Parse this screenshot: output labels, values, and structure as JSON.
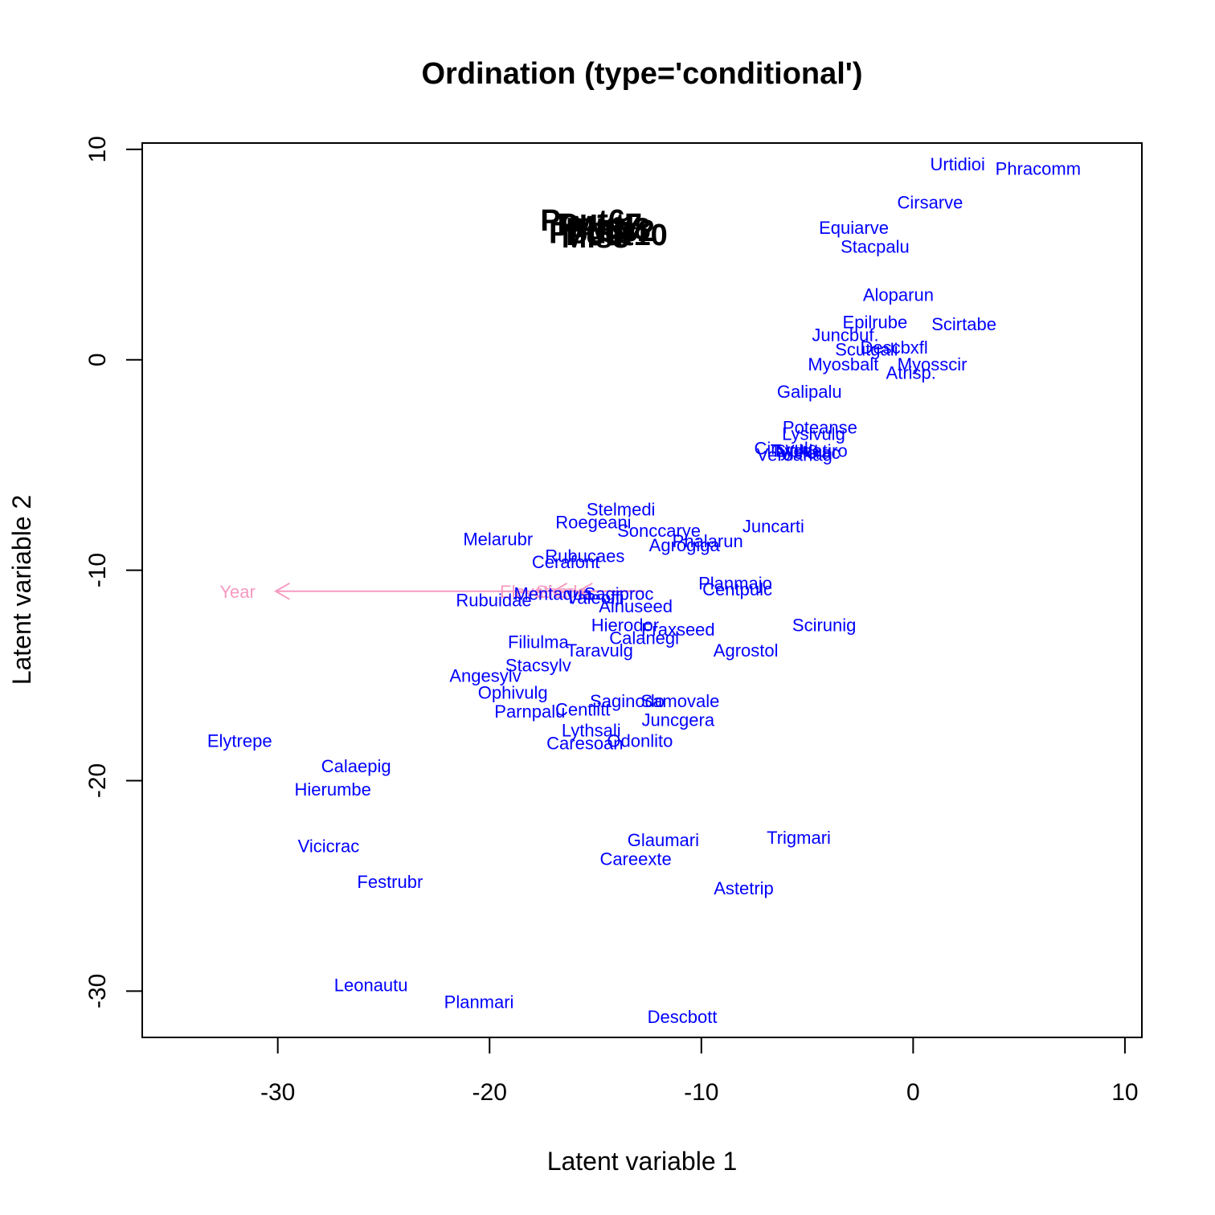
{
  "chart_data": {
    "type": "scatter",
    "title": "Ordination (type='conditional')",
    "xlabel": "Latent variable 1",
    "ylabel": "Latent variable 2",
    "xlim": [
      -36.4,
      10.8
    ],
    "ylim": [
      -32.2,
      10.3
    ],
    "xticks": [
      -30,
      -20,
      -10,
      0,
      10
    ],
    "yticks": [
      10,
      0,
      -10,
      -20,
      -30
    ],
    "colors": {
      "species": "#0000ff",
      "sites": "#000000",
      "env": "#f59ac0"
    },
    "sites": {
      "labels": [
        "Pout6",
        "Pout7",
        "Pout8",
        "Pout9",
        "Pout10",
        "Mis1",
        "Mis2",
        "Mis3"
      ],
      "x": [
        -15.6,
        -14.8,
        -14.4,
        -15.2,
        -14.0,
        -14.6,
        -13.8,
        -15.0
      ],
      "y": [
        6.6,
        6.4,
        6.2,
        6.0,
        5.9,
        6.3,
        6.1,
        5.8
      ]
    },
    "species": [
      {
        "label": "Urtidioi",
        "x": 2.1,
        "y": 9.3
      },
      {
        "label": "Phracomm",
        "x": 5.9,
        "y": 9.1
      },
      {
        "label": "Cirsarve",
        "x": 0.8,
        "y": 7.5
      },
      {
        "label": "Equiarve",
        "x": -2.8,
        "y": 6.3
      },
      {
        "label": "Stacpalu",
        "x": -1.8,
        "y": 5.4
      },
      {
        "label": "Aloparun",
        "x": -0.7,
        "y": 3.1
      },
      {
        "label": "Epilrube",
        "x": -1.8,
        "y": 1.8
      },
      {
        "label": "Scirtabe",
        "x": 2.4,
        "y": 1.7
      },
      {
        "label": "Juncbuf.",
        "x": -3.2,
        "y": 1.2
      },
      {
        "label": "Descbxfl",
        "x": -0.9,
        "y": 0.6
      },
      {
        "label": "Scutgali",
        "x": -2.2,
        "y": 0.5
      },
      {
        "label": "Myosbalt",
        "x": -3.3,
        "y": -0.2
      },
      {
        "label": "Myosscir",
        "x": 0.9,
        "y": -0.2
      },
      {
        "label": "Atrisp.",
        "x": -0.1,
        "y": -0.6
      },
      {
        "label": "Galipalu",
        "x": -4.9,
        "y": -1.5
      },
      {
        "label": "Poteanse",
        "x": -4.4,
        "y": -3.2
      },
      {
        "label": "Lysivulg",
        "x": -4.7,
        "y": -3.5
      },
      {
        "label": "Cirsvulg",
        "x": -6.0,
        "y": -4.2
      },
      {
        "label": "Lycoeuro",
        "x": -4.8,
        "y": -4.3
      },
      {
        "label": "Vicicrac",
        "x": -4.9,
        "y": -4.4
      },
      {
        "label": "Typhlati",
        "x": -5.3,
        "y": -4.3
      },
      {
        "label": "Veroanag",
        "x": -5.6,
        "y": -4.5
      },
      {
        "label": "Stelmedi",
        "x": -13.8,
        "y": -7.1
      },
      {
        "label": "Roegeani",
        "x": -15.1,
        "y": -7.7
      },
      {
        "label": "Sonccarye",
        "x": -12.0,
        "y": -8.1
      },
      {
        "label": "Juncarti",
        "x": -6.6,
        "y": -7.9
      },
      {
        "label": "Melarubr",
        "x": -19.6,
        "y": -8.5
      },
      {
        "label": "Phalarun",
        "x": -9.7,
        "y": -8.6
      },
      {
        "label": "Agrogiga",
        "x": -10.8,
        "y": -8.8
      },
      {
        "label": "Rubucaes",
        "x": -15.5,
        "y": -9.3
      },
      {
        "label": "Cerafont",
        "x": -16.4,
        "y": -9.6
      },
      {
        "label": "Planmajo",
        "x": -8.4,
        "y": -10.6
      },
      {
        "label": "Centpulc",
        "x": -8.3,
        "y": -10.9
      },
      {
        "label": "Rubuidae",
        "x": -19.8,
        "y": -11.4
      },
      {
        "label": "Mentaqua",
        "x": -17.0,
        "y": -11.1
      },
      {
        "label": "Valeoffi",
        "x": -15.0,
        "y": -11.3
      },
      {
        "label": "Sagiproc",
        "x": -13.9,
        "y": -11.1
      },
      {
        "label": "Alnuseed",
        "x": -13.1,
        "y": -11.7
      },
      {
        "label": "Hierodor",
        "x": -13.6,
        "y": -12.6
      },
      {
        "label": "Fraxseed",
        "x": -11.1,
        "y": -12.8
      },
      {
        "label": "Scirunig",
        "x": -4.2,
        "y": -12.6
      },
      {
        "label": "Calanegl",
        "x": -12.7,
        "y": -13.2
      },
      {
        "label": "Filiulma",
        "x": -17.7,
        "y": -13.4
      },
      {
        "label": "Taravulg",
        "x": -14.8,
        "y": -13.8
      },
      {
        "label": "Agrostol",
        "x": -7.9,
        "y": -13.8
      },
      {
        "label": "Stacsylv",
        "x": -17.7,
        "y": -14.5
      },
      {
        "label": "Angesylv",
        "x": -20.2,
        "y": -15.0
      },
      {
        "label": "Ophivulg",
        "x": -18.9,
        "y": -15.8
      },
      {
        "label": "Saginodo",
        "x": -13.5,
        "y": -16.2
      },
      {
        "label": "Samovale",
        "x": -11.0,
        "y": -16.2
      },
      {
        "label": "Centlitt",
        "x": -15.6,
        "y": -16.6
      },
      {
        "label": "Parnpalu",
        "x": -18.1,
        "y": -16.7
      },
      {
        "label": "Juncgera",
        "x": -11.1,
        "y": -17.1
      },
      {
        "label": "Lythsali",
        "x": -15.2,
        "y": -17.6
      },
      {
        "label": "Caresoan",
        "x": -15.5,
        "y": -18.2
      },
      {
        "label": "Odonlito",
        "x": -12.9,
        "y": -18.1
      },
      {
        "label": "Elytrepe",
        "x": -31.8,
        "y": -18.1
      },
      {
        "label": "Calaepig",
        "x": -26.3,
        "y": -19.3
      },
      {
        "label": "Hierumbe",
        "x": -27.4,
        "y": -20.4
      },
      {
        "label": "Glaumari",
        "x": -11.8,
        "y": -22.8
      },
      {
        "label": "Trigmari",
        "x": -5.4,
        "y": -22.7
      },
      {
        "label": "Vicicrac",
        "x": -27.6,
        "y": -23.1
      },
      {
        "label": "Careexte",
        "x": -13.1,
        "y": -23.7
      },
      {
        "label": "Festrubr",
        "x": -24.7,
        "y": -24.8
      },
      {
        "label": "Astetrip",
        "x": -8.0,
        "y": -25.1
      },
      {
        "label": "Leonautu",
        "x": -25.6,
        "y": -29.7
      },
      {
        "label": "Planmari",
        "x": -20.5,
        "y": -30.5
      },
      {
        "label": "Descbott",
        "x": -10.9,
        "y": -31.2
      }
    ],
    "env": {
      "origin": [
        -12.7,
        -11.0
      ],
      "arrows": [
        {
          "label": "Year",
          "x": -30.1,
          "y": -11.0,
          "label_x": -31.9,
          "label_y": -11.0
        },
        {
          "label": "Elevation",
          "x": -17.0,
          "y": -11.0,
          "label_x": -17.8,
          "label_y": -11.0
        },
        {
          "label": "Shade",
          "x": -15.8,
          "y": -11.0,
          "label_x": -16.6,
          "label_y": -11.0
        }
      ]
    }
  }
}
